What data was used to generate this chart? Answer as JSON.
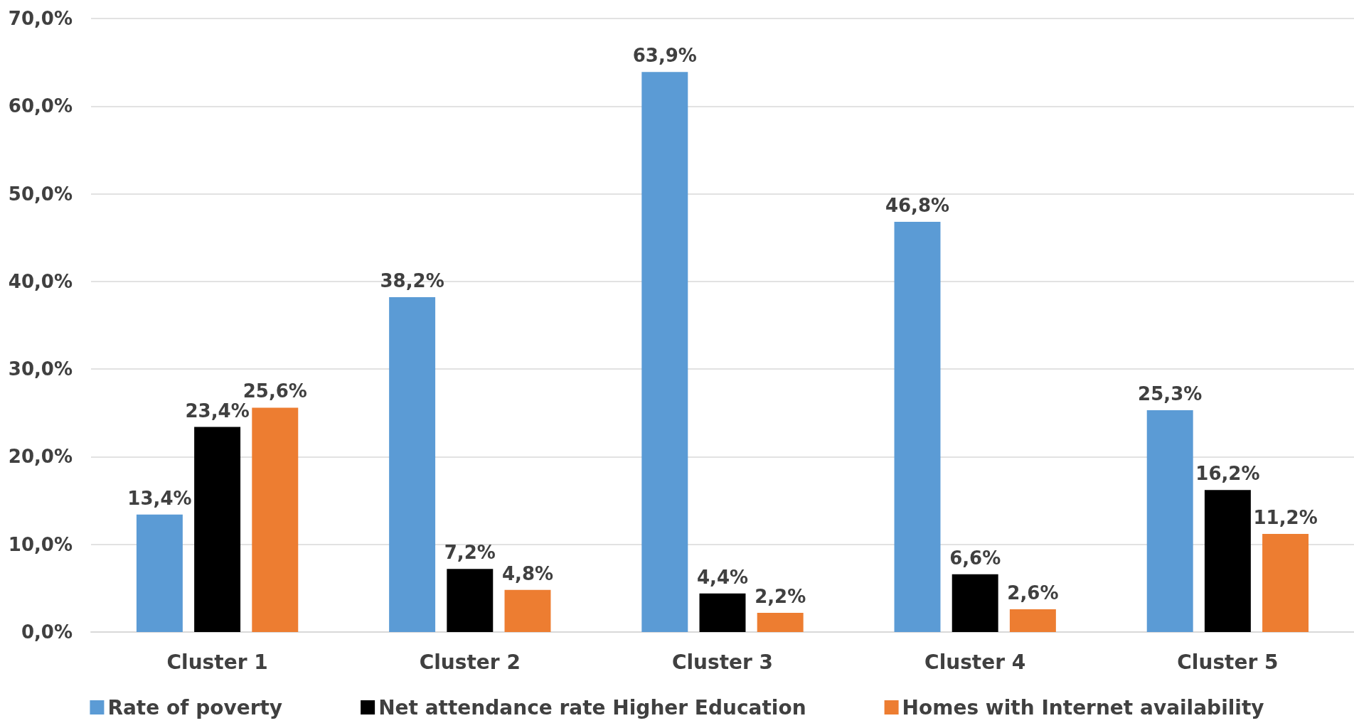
{
  "chart_data": {
    "type": "bar",
    "categories": [
      "Cluster 1",
      "Cluster 2",
      "Cluster 3",
      "Cluster 4",
      "Cluster 5"
    ],
    "series": [
      {
        "name": "Rate of poverty",
        "color": "#5b9bd5",
        "values": [
          13.4,
          38.2,
          63.9,
          46.8,
          25.3
        ],
        "value_labels": [
          "13,4%",
          "38,2%",
          "63,9%",
          "46,8%",
          "25,3%"
        ]
      },
      {
        "name": "Net attendance rate Higher Education",
        "color": "#000000",
        "values": [
          23.4,
          7.2,
          4.4,
          6.6,
          16.2
        ],
        "value_labels": [
          "23,4%",
          "7,2%",
          "4,4%",
          "6,6%",
          "16,2%"
        ]
      },
      {
        "name": "Homes with Internet availability",
        "color": "#ed7d31",
        "values": [
          25.6,
          4.8,
          2.2,
          2.6,
          11.2
        ],
        "value_labels": [
          "25,6%",
          "4,8%",
          "2,2%",
          "2,6%",
          "11,2%"
        ]
      }
    ],
    "ylim": [
      0,
      70
    ],
    "yticks": [
      {
        "value": 0,
        "label": "0,0%"
      },
      {
        "value": 10,
        "label": "10,0%"
      },
      {
        "value": 20,
        "label": "20,0%"
      },
      {
        "value": 30,
        "label": "30,0%"
      },
      {
        "value": 40,
        "label": "40,0%"
      },
      {
        "value": 50,
        "label": "50,0%"
      },
      {
        "value": 60,
        "label": "60,0%"
      },
      {
        "value": 70,
        "label": "70,0%"
      }
    ],
    "grid": "y",
    "legend": "bottom"
  }
}
